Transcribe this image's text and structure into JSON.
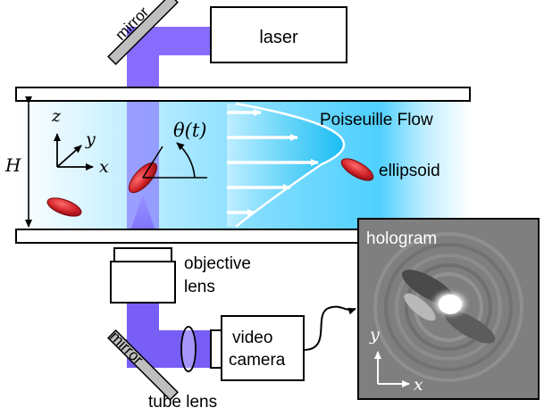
{
  "labels": {
    "laser": "laser",
    "mirror_top": "mirror",
    "mirror_bottom": "mirror",
    "poiseuille_flow": "Poiseuille Flow",
    "ellipsoid": "ellipsoid",
    "objective_line1": "objective",
    "objective_line2": "lens",
    "video_line1": "video",
    "video_line2": "camera",
    "tube_lens": "tube lens",
    "hologram": "hologram"
  },
  "symbols": {
    "height": "H",
    "axis_z": "z",
    "axis_y": "y",
    "axis_x": "x",
    "angle": "θ(t)",
    "holo_axis_y": "y",
    "holo_axis_x": "x"
  },
  "colors": {
    "beam": "#7a5cff",
    "beam_dark": "#5a35e8",
    "channel_fluid": "#4fd0ff",
    "ellipsoid": "#d0232a",
    "flow_profile": "#1ec0f5",
    "hologram_bg": "#7f7f7f"
  }
}
